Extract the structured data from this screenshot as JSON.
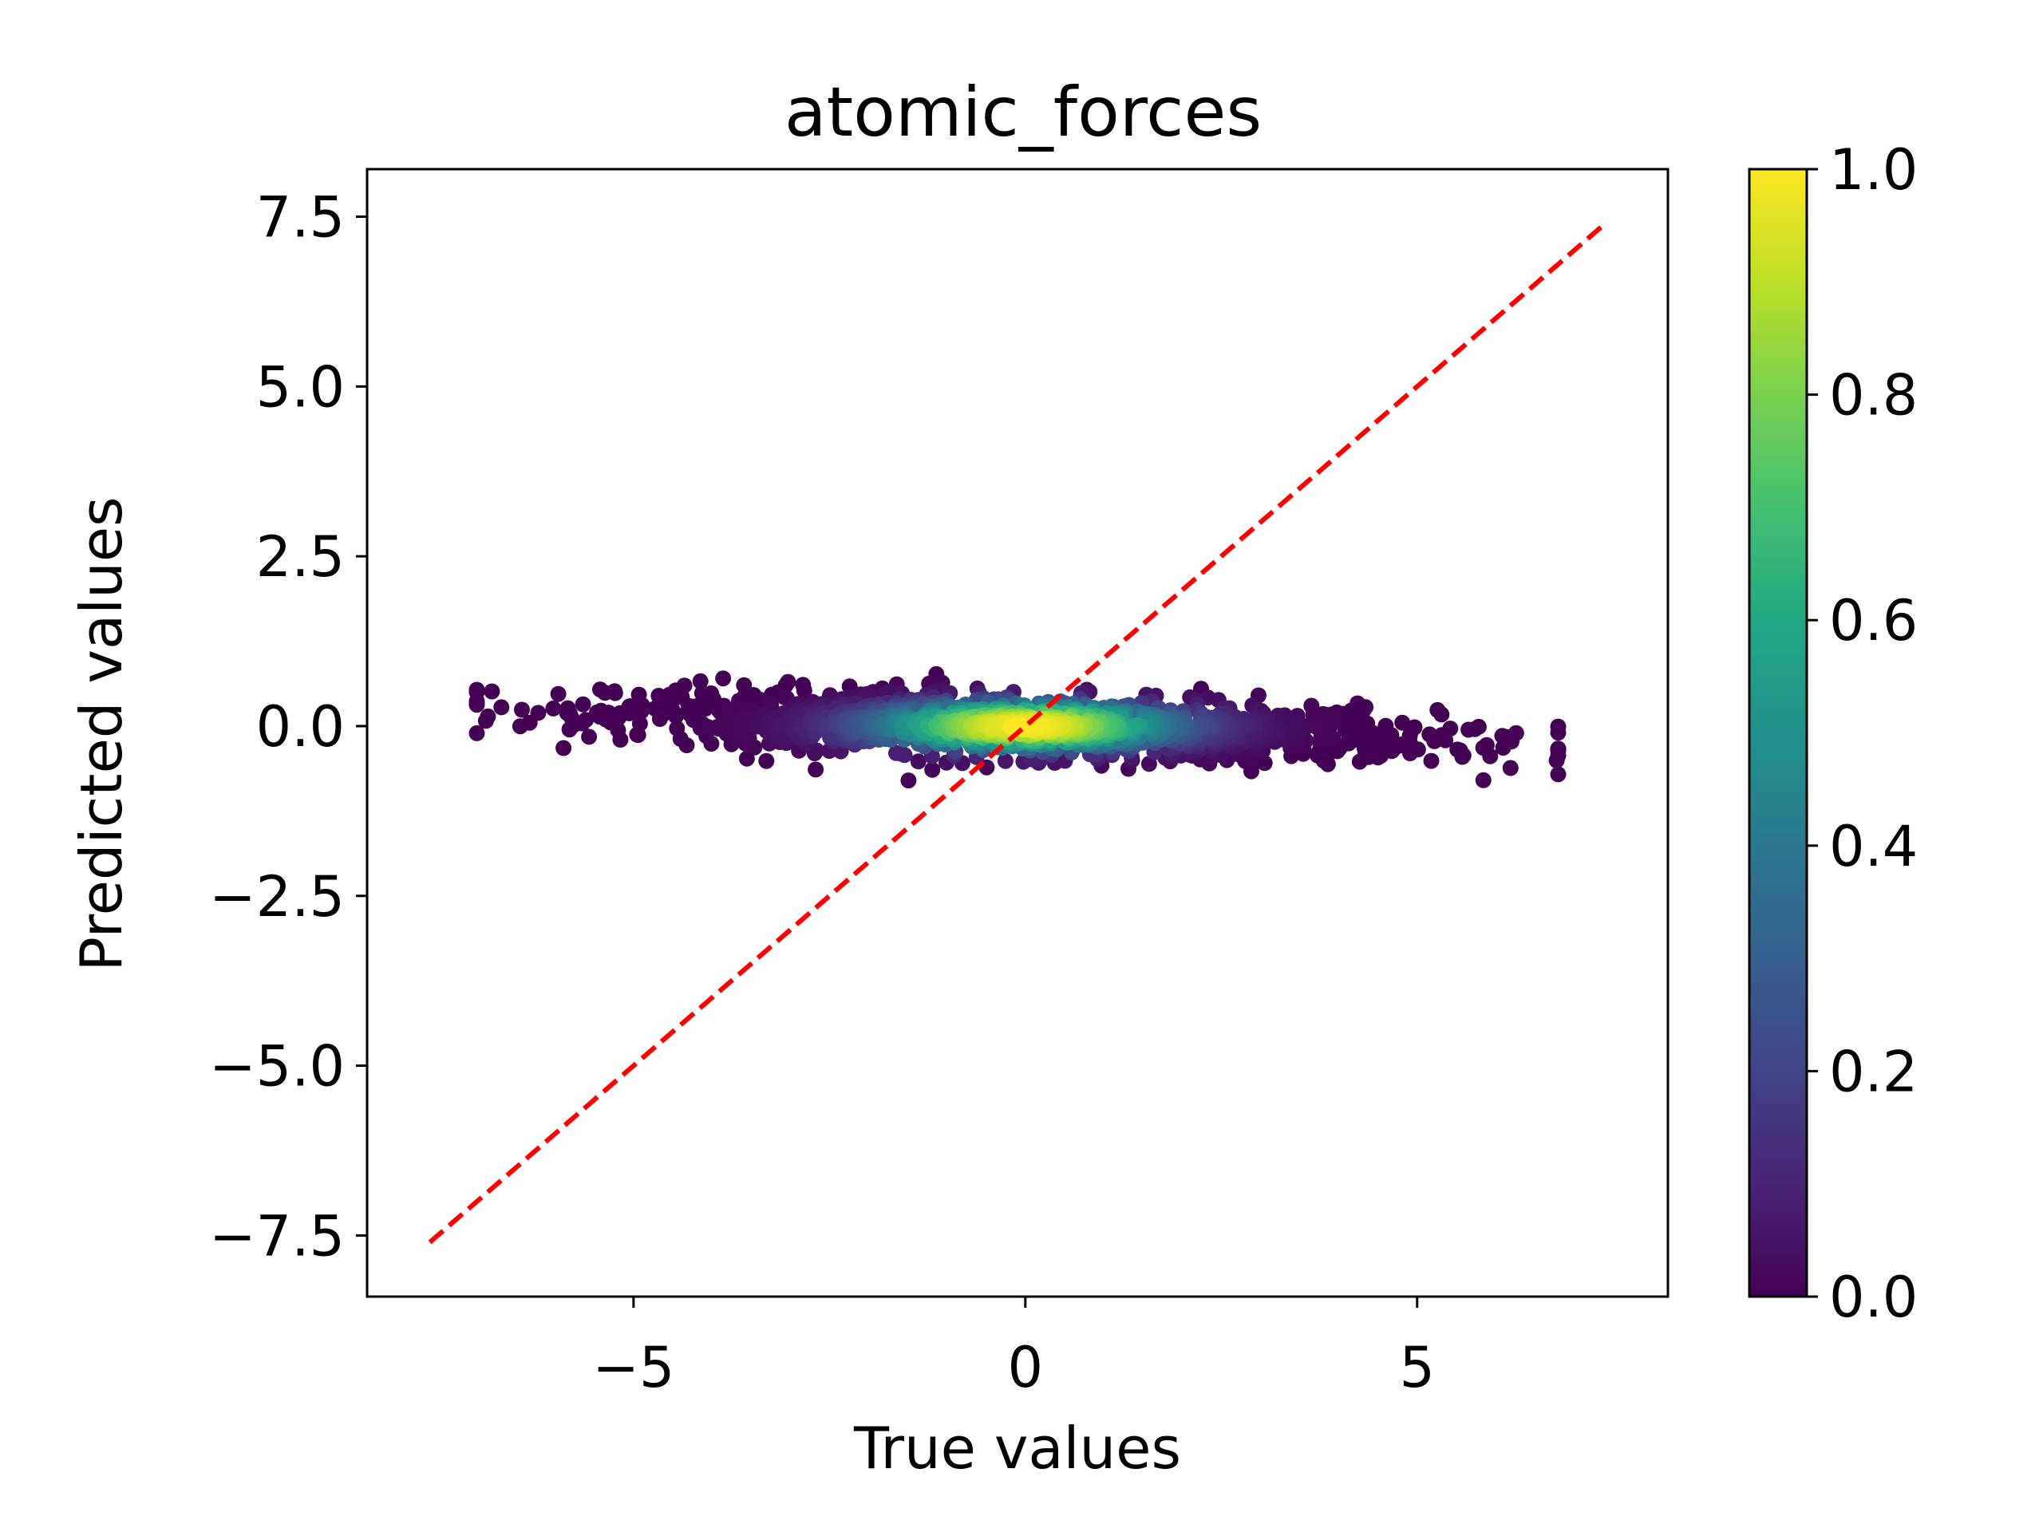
{
  "chart_data": {
    "type": "scatter",
    "title": "atomic_forces",
    "xlabel": "True values",
    "ylabel": "Predicted values",
    "xlim": [
      -8.4,
      8.2
    ],
    "ylim": [
      -8.4,
      8.2
    ],
    "xticks": [
      -5,
      0,
      5
    ],
    "xtick_labels": [
      "−5",
      "0",
      "5"
    ],
    "yticks": [
      -7.5,
      -5.0,
      -2.5,
      0.0,
      2.5,
      5.0,
      7.5
    ],
    "ytick_labels": [
      "−7.5",
      "−5.0",
      "−2.5",
      "0.0",
      "2.5",
      "5.0",
      "7.5"
    ],
    "grid": false,
    "colormap": "viridis",
    "colorbar": {
      "range": [
        0.0,
        1.0
      ],
      "ticks": [
        0.0,
        0.2,
        0.4,
        0.6,
        0.8,
        1.0
      ],
      "tick_labels": [
        "0.0",
        "0.2",
        "0.4",
        "0.6",
        "0.8",
        "1.0"
      ]
    },
    "point_cloud": {
      "x_range": [
        -7.0,
        6.8
      ],
      "y_range": [
        -0.8,
        0.8
      ],
      "center": [
        0.0,
        0.0
      ],
      "slope": -0.04,
      "point_count": 1400
    },
    "reference_line": {
      "name": "y = x",
      "x": [
        -7.6,
        7.4
      ],
      "y": [
        -7.6,
        7.4
      ],
      "color": "#ff0000",
      "style": "dashed"
    }
  }
}
